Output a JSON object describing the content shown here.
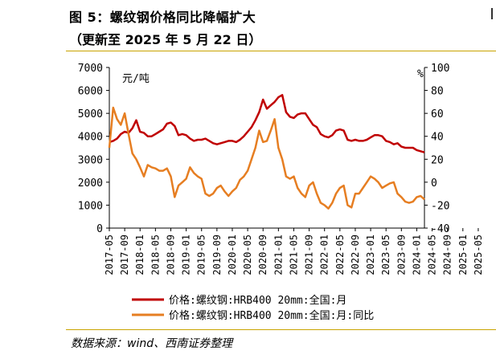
{
  "header": {
    "title": "图 5：螺纹钢价格同比降幅扩大",
    "subtitle": "（更新至 2025 年 5 月 22 日）"
  },
  "footer": {
    "source": "数据来源：wind、西南证券整理"
  },
  "chart_data": {
    "type": "line",
    "left_axis": {
      "unit_label": "元/吨",
      "ylim": [
        0,
        7000
      ],
      "ticks": [
        0,
        1000,
        2000,
        3000,
        4000,
        5000,
        6000,
        7000
      ]
    },
    "right_axis": {
      "unit_label": "%",
      "ylim": [
        -40,
        100
      ],
      "ticks": [
        -40,
        -20,
        0,
        20,
        40,
        60,
        80,
        100
      ]
    },
    "x_tick_labels": [
      "2017-05",
      "2017-09",
      "2018-01",
      "2018-05",
      "2018-09",
      "2019-01",
      "2019-05",
      "2019-09",
      "2020-01",
      "2020-05",
      "2020-09",
      "2021-01",
      "2021-05",
      "2021-09",
      "2022-01",
      "2022-05",
      "2022-09",
      "2023-01",
      "2023-05",
      "2023-09",
      "2024-01",
      "2024-05",
      "2024-09",
      "2025-01",
      "2025-05"
    ],
    "series": [
      {
        "name": "价格:螺纹钢:HRB400 20mm:全国:月",
        "axis": "left",
        "color": "#c00000",
        "values": [
          3750,
          3800,
          3900,
          4100,
          4200,
          4150,
          4350,
          4700,
          4200,
          4150,
          4000,
          4000,
          4100,
          4200,
          4300,
          4550,
          4600,
          4450,
          4050,
          4100,
          4050,
          3900,
          3800,
          3850,
          3850,
          3900,
          3800,
          3700,
          3650,
          3700,
          3750,
          3800,
          3800,
          3750,
          3850,
          4000,
          4200,
          4400,
          4700,
          5050,
          5600,
          5200,
          5350,
          5500,
          5700,
          5800,
          5050,
          4850,
          4800,
          4950,
          5000,
          5000,
          4750,
          4500,
          4400,
          4100,
          4000,
          3950,
          4050,
          4250,
          4300,
          4250,
          3850,
          3800,
          3850,
          3800,
          3800,
          3850,
          3950,
          4050,
          4050,
          4000,
          3800,
          3750,
          3650,
          3700,
          3550,
          3500,
          3500,
          3500,
          3400,
          3350,
          3300
        ]
      },
      {
        "name": "价格:螺纹钢:HRB400 20mm:全国:月:同比",
        "axis": "right",
        "color": "#e67e22",
        "values": [
          30,
          65,
          55,
          50,
          60,
          42,
          25,
          20,
          13,
          5,
          15,
          13,
          12,
          10,
          10,
          12,
          5,
          -13,
          -3,
          0,
          3,
          13,
          8,
          5,
          3,
          -10,
          -12,
          -10,
          -5,
          -3,
          -8,
          -12,
          -8,
          -5,
          2,
          5,
          10,
          20,
          30,
          45,
          35,
          36,
          45,
          55,
          30,
          20,
          5,
          3,
          5,
          -5,
          -10,
          -13,
          -3,
          0,
          -10,
          -18,
          -20,
          -23,
          -18,
          -10,
          -5,
          -3,
          -20,
          -22,
          -10,
          -10,
          -5,
          0,
          5,
          3,
          0,
          -5,
          -3,
          -1,
          0,
          -10,
          -13,
          -17,
          -18,
          -17,
          -13,
          -12,
          -15
        ]
      }
    ]
  }
}
